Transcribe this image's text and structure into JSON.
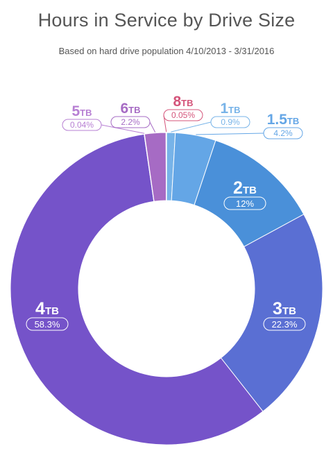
{
  "chart_data": {
    "type": "pie",
    "variant": "donut",
    "title": "Hours in Service by Drive Size",
    "subtitle": "Based on hard drive population 4/10/2013 - 3/31/2016",
    "legend": "none",
    "unit": "TB",
    "slices": [
      {
        "size": "1",
        "unit": "TB",
        "value": 0.9,
        "label": "0.9%",
        "color": "#77b3e8"
      },
      {
        "size": "1.5",
        "unit": "TB",
        "value": 4.2,
        "label": "4.2%",
        "color": "#64a6e6"
      },
      {
        "size": "2",
        "unit": "TB",
        "value": 12,
        "label": "12%",
        "color": "#4a90d9"
      },
      {
        "size": "3",
        "unit": "TB",
        "value": 22.3,
        "label": "22.3%",
        "color": "#5a6fd3"
      },
      {
        "size": "4",
        "unit": "TB",
        "value": 58.3,
        "label": "58.3%",
        "color": "#7553c9"
      },
      {
        "size": "5",
        "unit": "TB",
        "value": 0.04,
        "label": "0.04%",
        "color": "#b77fd3"
      },
      {
        "size": "6",
        "unit": "TB",
        "value": 2.2,
        "label": "2.2%",
        "color": "#a66bc4"
      },
      {
        "size": "8",
        "unit": "TB",
        "value": 0.05,
        "label": "0.05%",
        "color": "#d4547a"
      }
    ]
  }
}
